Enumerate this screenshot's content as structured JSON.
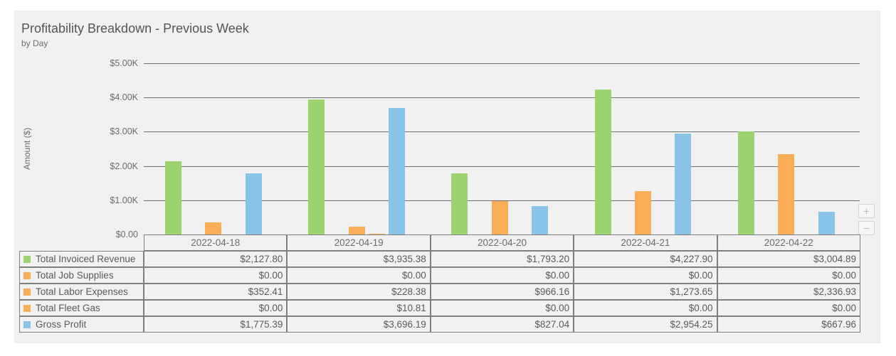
{
  "controls": {
    "zoom_in_label": "+",
    "zoom_out_label": "−"
  },
  "chart_data": {
    "type": "bar",
    "title": "Profitability Breakdown - Previous Week",
    "subtitle": "by Day",
    "ylabel": "Amount ($)",
    "ylim": [
      0,
      5000
    ],
    "ytick_labels": [
      "$5.00K",
      "$4.00K",
      "$3.00K",
      "$2.00K",
      "$1.00K",
      "$0.00"
    ],
    "grid": "horizontal",
    "legend_position": "table-left",
    "categories": [
      "2022-04-18",
      "2022-04-19",
      "2022-04-20",
      "2022-04-21",
      "2022-04-22"
    ],
    "series": [
      {
        "name": "Total Invoiced Revenue",
        "color": "#9BD46F",
        "values": [
          2127.8,
          3935.38,
          1793.2,
          4227.9,
          3004.89
        ]
      },
      {
        "name": "Total Job Supplies",
        "color": "#F9AD56",
        "values": [
          0.0,
          0.0,
          0.0,
          0.0,
          0.0
        ]
      },
      {
        "name": "Total Labor Expenses",
        "color": "#F9AD56",
        "values": [
          352.41,
          228.38,
          966.16,
          1273.65,
          2336.93
        ]
      },
      {
        "name": "Total Fleet Gas",
        "color": "#F9AD56",
        "values": [
          0.0,
          10.81,
          0.0,
          0.0,
          0.0
        ]
      },
      {
        "name": "Gross Profit",
        "color": "#8AC3E8",
        "values": [
          1775.39,
          3696.19,
          827.04,
          2954.25,
          667.96
        ]
      }
    ]
  },
  "table": {
    "columns": [
      "2022-04-18",
      "2022-04-19",
      "2022-04-20",
      "2022-04-21",
      "2022-04-22"
    ],
    "rows": [
      {
        "label": "Total Invoiced Revenue",
        "color": "#9BD46F",
        "values": [
          "$2,127.80",
          "$3,935.38",
          "$1,793.20",
          "$4,227.90",
          "$3,004.89"
        ]
      },
      {
        "label": "Total Job Supplies",
        "color": "#F9AD56",
        "values": [
          "$0.00",
          "$0.00",
          "$0.00",
          "$0.00",
          "$0.00"
        ]
      },
      {
        "label": "Total Labor Expenses",
        "color": "#F9AD56",
        "values": [
          "$352.41",
          "$228.38",
          "$966.16",
          "$1,273.65",
          "$2,336.93"
        ]
      },
      {
        "label": "Total Fleet Gas",
        "color": "#F9AD56",
        "values": [
          "$0.00",
          "$10.81",
          "$0.00",
          "$0.00",
          "$0.00"
        ]
      },
      {
        "label": "Gross Profit",
        "color": "#8AC3E8",
        "values": [
          "$1,775.39",
          "$3,696.19",
          "$827.04",
          "$2,954.25",
          "$667.96"
        ]
      }
    ]
  }
}
